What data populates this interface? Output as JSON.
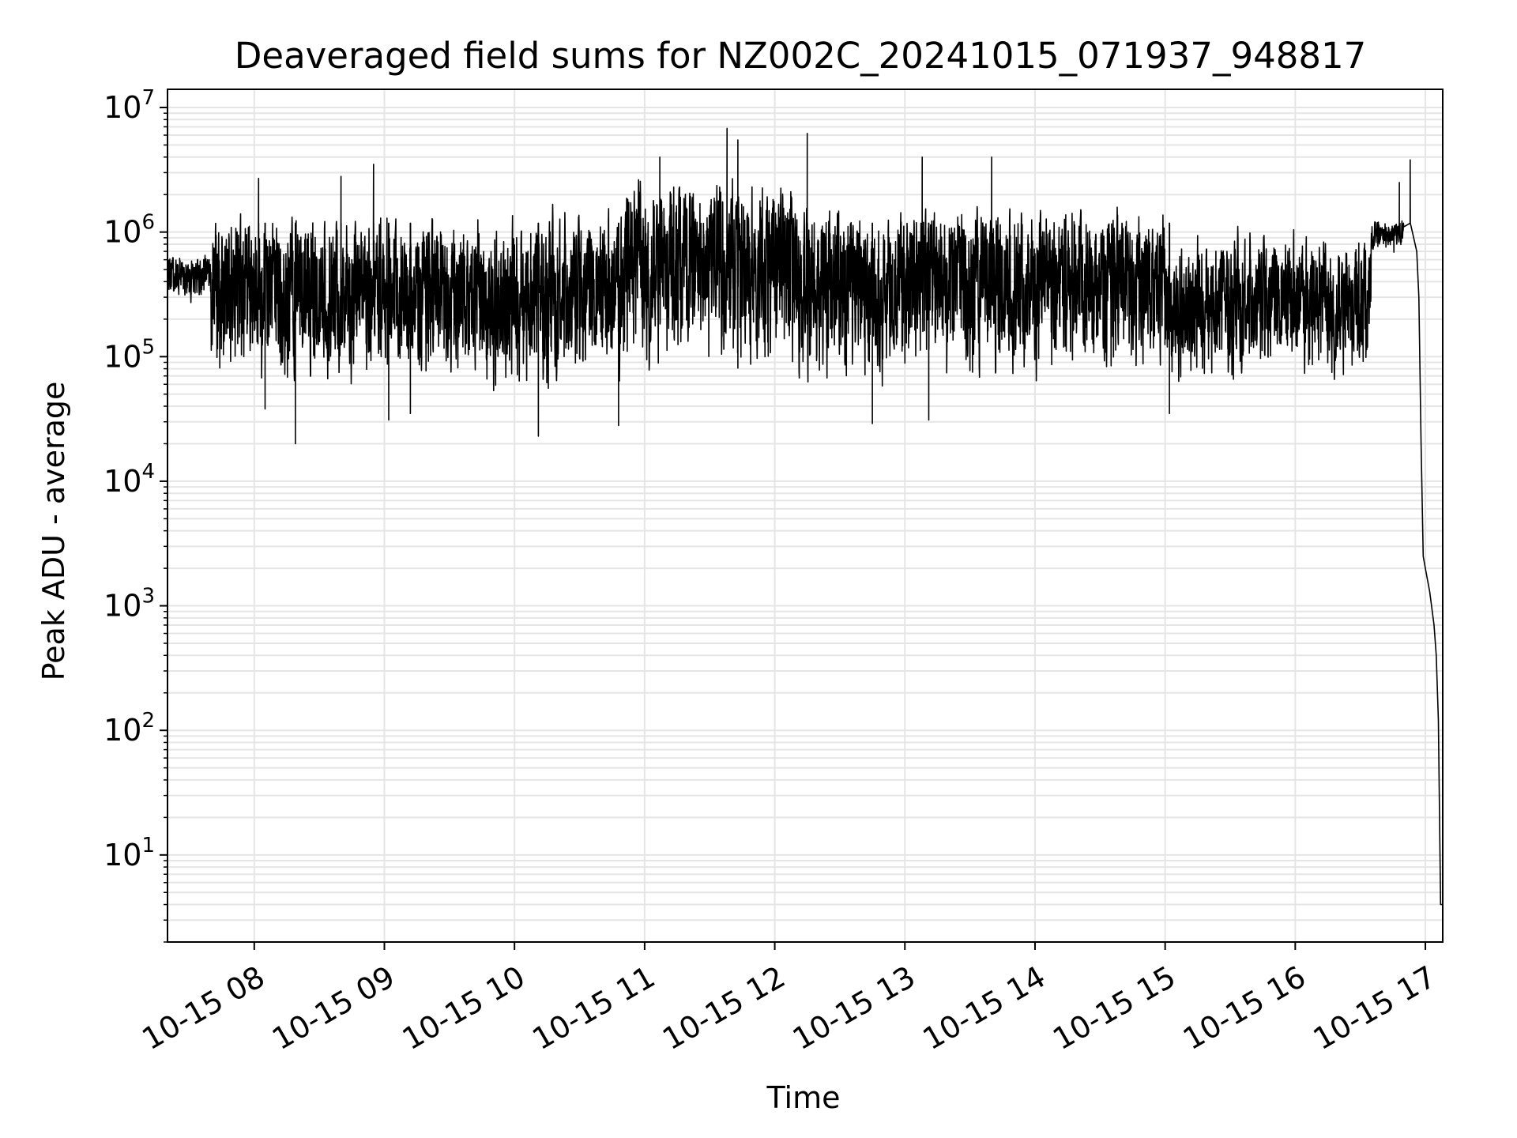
{
  "chart_data": {
    "type": "line",
    "title": "Deaveraged field sums for NZ002C_20241015_071937_948817",
    "xlabel": "Time",
    "ylabel": "Peak ADU - average",
    "yscale": "log",
    "ylim": [
      2,
      14000000
    ],
    "xlim": [
      "2024-10-15 07:20",
      "2024-10-15 17:08"
    ],
    "grid": true,
    "grid_minor": true,
    "line_color": "#000000",
    "grid_color": "#e5e5e5",
    "x_ticks": [
      {
        "t": "2024-10-15 08:00",
        "label": "10-15 08"
      },
      {
        "t": "2024-10-15 09:00",
        "label": "10-15 09"
      },
      {
        "t": "2024-10-15 10:00",
        "label": "10-15 10"
      },
      {
        "t": "2024-10-15 11:00",
        "label": "10-15 11"
      },
      {
        "t": "2024-10-15 12:00",
        "label": "10-15 12"
      },
      {
        "t": "2024-10-15 13:00",
        "label": "10-15 13"
      },
      {
        "t": "2024-10-15 14:00",
        "label": "10-15 14"
      },
      {
        "t": "2024-10-15 15:00",
        "label": "10-15 15"
      },
      {
        "t": "2024-10-15 16:00",
        "label": "10-15 16"
      },
      {
        "t": "2024-10-15 17:00",
        "label": "10-15 17"
      }
    ],
    "y_ticks": [
      {
        "v": 10,
        "base": "10",
        "exp": "1"
      },
      {
        "v": 100,
        "base": "10",
        "exp": "2"
      },
      {
        "v": 1000,
        "base": "10",
        "exp": "3"
      },
      {
        "v": 10000,
        "base": "10",
        "exp": "4"
      },
      {
        "v": 100000,
        "base": "10",
        "exp": "5"
      },
      {
        "v": 1000000,
        "base": "10",
        "exp": "6"
      },
      {
        "v": 10000000,
        "base": "10",
        "exp": "7"
      }
    ],
    "segments": [
      {
        "t_start": "2024-10-15 07:20",
        "t_end": "2024-10-15 07:40",
        "center": 450000,
        "low": 250000,
        "high": 800000
      },
      {
        "t_start": "2024-10-15 07:40",
        "t_end": "2024-10-15 10:50",
        "center": 350000,
        "low": 40000,
        "high": 2000000
      },
      {
        "t_start": "2024-10-15 10:50",
        "t_end": "2024-10-15 12:10",
        "center": 700000,
        "low": 50000,
        "high": 4000000
      },
      {
        "t_start": "2024-10-15 12:10",
        "t_end": "2024-10-15 15:00",
        "center": 450000,
        "low": 40000,
        "high": 2000000
      },
      {
        "t_start": "2024-10-15 15:00",
        "t_end": "2024-10-15 16:35",
        "center": 300000,
        "low": 50000,
        "high": 1300000
      },
      {
        "t_start": "2024-10-15 16:35",
        "t_end": "2024-10-15 16:50",
        "center": 1000000,
        "low": 600000,
        "high": 1300000
      }
    ],
    "spikes": [
      {
        "t": "2024-10-15 08:02",
        "value": 2700000
      },
      {
        "t": "2024-10-15 08:05",
        "value": 38000
      },
      {
        "t": "2024-10-15 08:19",
        "value": 20000
      },
      {
        "t": "2024-10-15 08:40",
        "value": 2800000
      },
      {
        "t": "2024-10-15 08:55",
        "value": 3500000
      },
      {
        "t": "2024-10-15 09:02",
        "value": 31000
      },
      {
        "t": "2024-10-15 09:12",
        "value": 35000
      },
      {
        "t": "2024-10-15 10:11",
        "value": 23000
      },
      {
        "t": "2024-10-15 10:48",
        "value": 28000
      },
      {
        "t": "2024-10-15 11:07",
        "value": 4000000
      },
      {
        "t": "2024-10-15 11:38",
        "value": 6800000
      },
      {
        "t": "2024-10-15 11:43",
        "value": 5500000
      },
      {
        "t": "2024-10-15 12:15",
        "value": 6200000
      },
      {
        "t": "2024-10-15 12:45",
        "value": 29000
      },
      {
        "t": "2024-10-15 13:08",
        "value": 4000000
      },
      {
        "t": "2024-10-15 13:11",
        "value": 31000
      },
      {
        "t": "2024-10-15 13:40",
        "value": 4000000
      },
      {
        "t": "2024-10-15 15:02",
        "value": 35000
      },
      {
        "t": "2024-10-15 16:48",
        "value": 2500000
      },
      {
        "t": "2024-10-15 16:53",
        "value": 3800000
      }
    ],
    "tail": [
      {
        "t": "2024-10-15 16:50",
        "value": 1100000
      },
      {
        "t": "2024-10-15 16:54",
        "value": 1000000
      },
      {
        "t": "2024-10-15 16:56",
        "value": 700000
      },
      {
        "t": "2024-10-15 16:57",
        "value": 300000
      },
      {
        "t": "2024-10-15 16:58",
        "value": 20000
      },
      {
        "t": "2024-10-15 16:59",
        "value": 2500
      },
      {
        "t": "2024-10-15 17:00",
        "value": 2000
      },
      {
        "t": "2024-10-15 17:02",
        "value": 1300
      },
      {
        "t": "2024-10-15 17:04",
        "value": 700
      },
      {
        "t": "2024-10-15 17:05",
        "value": 400
      },
      {
        "t": "2024-10-15 17:06",
        "value": 120
      },
      {
        "t": "2024-10-15 17:07",
        "value": 4
      },
      {
        "t": "2024-10-15 17:08",
        "value": 4
      }
    ]
  }
}
